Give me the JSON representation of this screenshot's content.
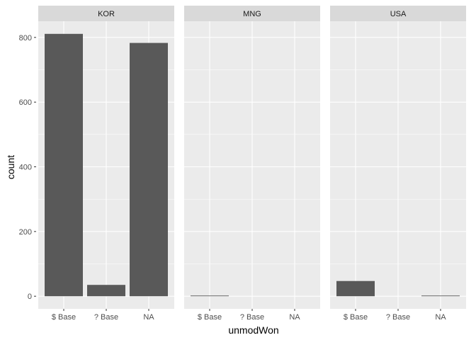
{
  "chart_data": {
    "type": "bar",
    "facet_var": "country",
    "facets": [
      "KOR",
      "MNG",
      "USA"
    ],
    "categories": [
      "$ Base",
      "? Base",
      "NA"
    ],
    "values": {
      "KOR": [
        811,
        35,
        783
      ],
      "MNG": [
        2,
        0,
        0
      ],
      "USA": [
        47,
        0,
        2
      ]
    },
    "xlabel": "unmodWon",
    "ylabel": "count",
    "ylim": [
      -39,
      850
    ],
    "yticks": [
      0,
      200,
      400,
      600,
      800
    ],
    "grid": true,
    "colors": {
      "bar": "#595959",
      "panel_bg": "#ebebeb",
      "strip_bg": "#d9d9d9",
      "grid": "#ffffff"
    }
  }
}
